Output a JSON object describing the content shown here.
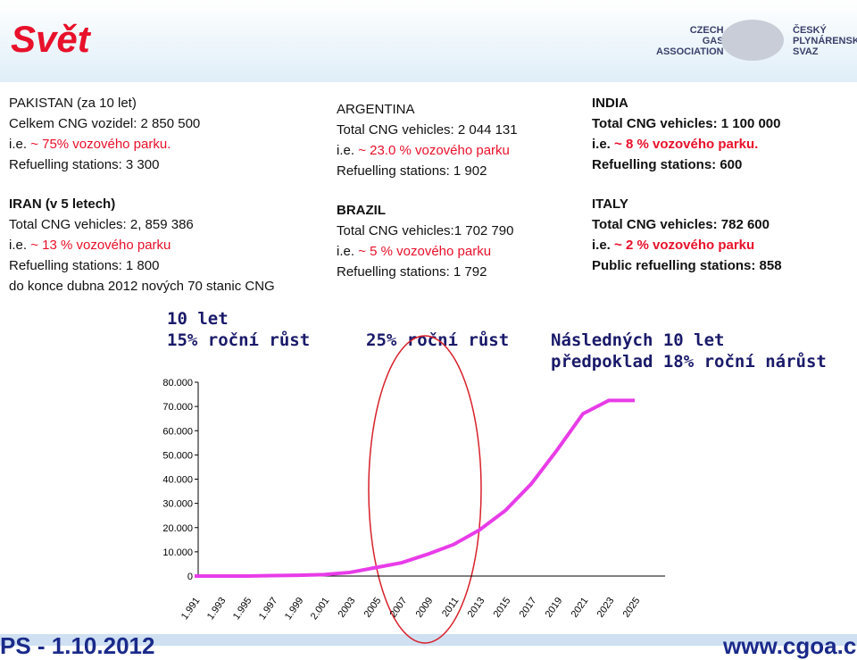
{
  "header": {
    "title": "Svět",
    "logo_left": [
      "CZECH",
      "GAS",
      "ASSOCIATION"
    ],
    "logo_right": [
      "ČESKÝ",
      "PLYNÁRENSKÝ",
      "SVAZ"
    ]
  },
  "blocks": [
    {
      "lines": [
        "PAKISTAN (za 10 let)",
        "Celkem CNG vozidel:  2 850 500",
        {
          "prefix": "i.e.",
          "highlight": "~ 75%  vozového parku."
        },
        "Refuelling stations: 3 300"
      ]
    },
    {
      "lines": [
        "ARGENTINA",
        "Total CNG vehicles: 2 044 131",
        {
          "prefix": "i.e.",
          "highlight": "~ 23.0 % vozového parku"
        },
        "Refuelling stations: 1 902"
      ]
    },
    {
      "lines": [
        "INDIA",
        "Total CNG vehicles: 1 100 000",
        {
          "prefix": "i.e.",
          "highlight": "~ 8 % vozového parku."
        },
        "Refuelling stations: 600"
      ]
    },
    {
      "lines": [
        "IRAN (v 5 letech)",
        "Total CNG vehicles: 2, 859 386",
        {
          "prefix": "i.e.",
          "highlight": "~ 13 %  vozového parku"
        },
        "Refuelling stations: 1 800",
        "do konce dubna  2012 nových 70 stanic CNG"
      ]
    },
    {
      "lines": [
        "BRAZIL",
        "Total CNG vehicles:1 702 790",
        {
          "prefix": "i.e.",
          "highlight": "~ 5 % vozového parku"
        },
        "Refuelling stations: 1 792"
      ]
    },
    {
      "lines": [
        "ITALY",
        "Total CNG vehicles: 782 600",
        {
          "prefix": "i.e.",
          "highlight": "~ 2 % vozového parku"
        },
        "Public refuelling stations: 858"
      ]
    }
  ],
  "annotations": [
    "10 let",
    "15% roční růst",
    "25% roční růst",
    "Následných 10 let",
    "předpoklad 18% roční nárůst"
  ],
  "footer": {
    "left": "PS - 1.10.2012",
    "right": "www.cgoa.cz"
  },
  "chart_data": {
    "type": "line",
    "categories": [
      "1.991",
      "1.993",
      "1.995",
      "1.997",
      "1.999",
      "2.001",
      "2003",
      "2005",
      "2007",
      "2009",
      "2011",
      "2013",
      "2015",
      "2017",
      "2019",
      "2021",
      "2023",
      "2025"
    ],
    "series": [
      {
        "color": "#e83ce8",
        "values": [
          0,
          0,
          0,
          200,
          300,
          600,
          1500,
          3500,
          5500,
          9000,
          13000,
          19000,
          27000,
          38000,
          52000,
          67000,
          72500,
          72500
        ]
      }
    ],
    "ylim": [
      0,
      80000
    ],
    "yticks": [
      0,
      {
        "value": 10000,
        "label": "10.000"
      },
      {
        "value": 20000,
        "label": "20.000"
      },
      {
        "value": 30000,
        "label": "30.000"
      },
      {
        "value": 40000,
        "label": "40.000"
      },
      {
        "value": 50000,
        "label": "50.000"
      },
      {
        "value": 60000,
        "label": "60.000"
      },
      {
        "value": 70000,
        "label": "70.000"
      },
      {
        "value": 80000,
        "label": "80.000"
      }
    ]
  }
}
